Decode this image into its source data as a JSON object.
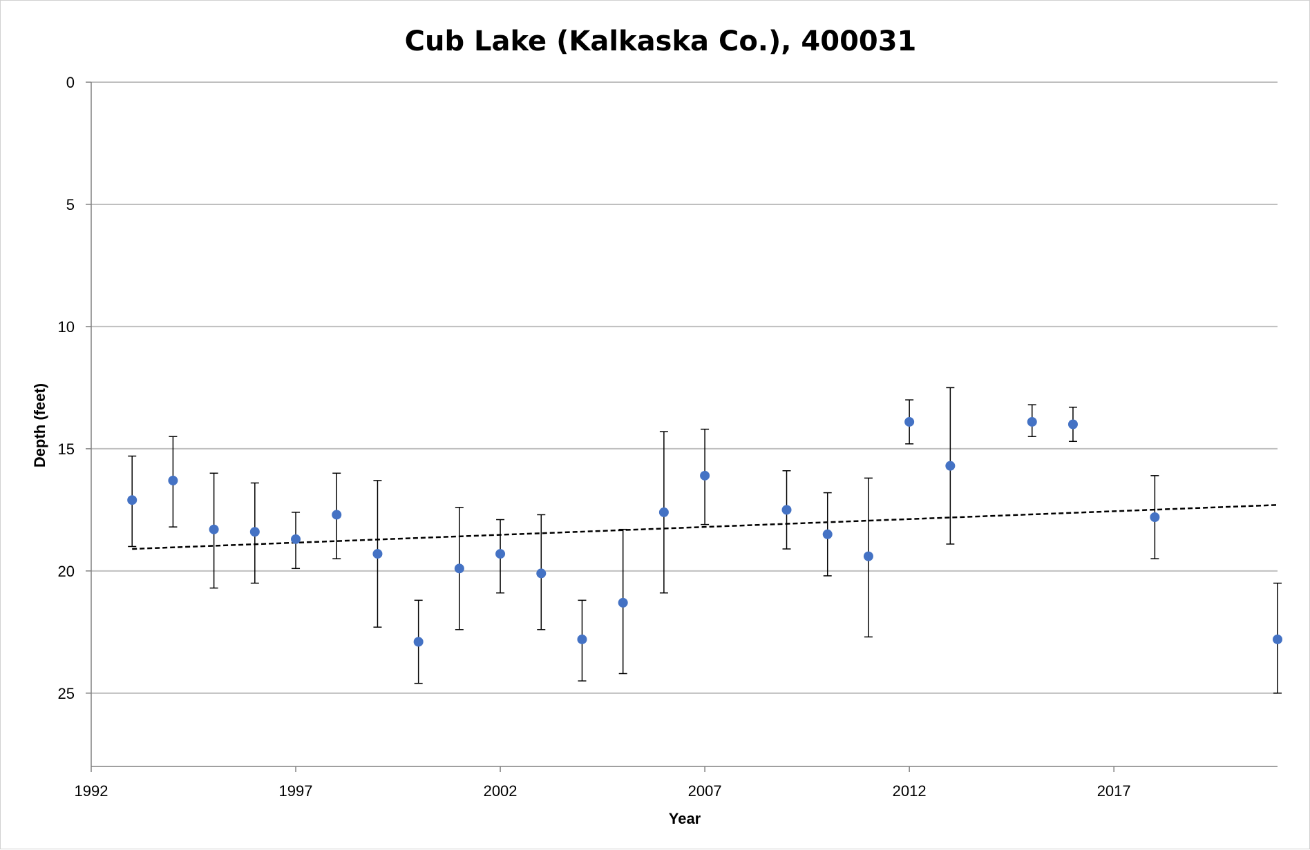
{
  "chart_data": {
    "type": "scatter",
    "title": "Cub Lake (Kalkaska Co.), 400031",
    "xlabel": "Year",
    "ylabel": "Depth (feet)",
    "xlim": [
      1992,
      2021
    ],
    "ylim": [
      0,
      28
    ],
    "y_inverted": true,
    "x_ticks": [
      1992,
      1997,
      2002,
      2007,
      2012,
      2017
    ],
    "y_ticks": [
      0,
      5,
      10,
      15,
      20,
      25
    ],
    "grid": "horizontal",
    "legend": "none",
    "colors": {
      "marker": "#4472C4",
      "error_bar": "#000000",
      "trendline": "#000000",
      "grid": "#bfbfbf"
    },
    "series": [
      {
        "x": [
          1993,
          1994,
          1995,
          1996,
          1997,
          1998,
          1999,
          2000,
          2001,
          2002,
          2003,
          2004,
          2005,
          2006,
          2007,
          2009,
          2010,
          2011,
          2012,
          2013,
          2015,
          2016,
          2018,
          2021
        ],
        "y": [
          17.1,
          16.3,
          18.3,
          18.4,
          18.7,
          17.7,
          19.3,
          22.9,
          19.9,
          19.3,
          20.1,
          22.8,
          21.3,
          17.6,
          16.1,
          17.5,
          18.5,
          19.4,
          13.9,
          15.7,
          13.9,
          14.0,
          17.8,
          22.8
        ],
        "error_low": [
          19.0,
          18.2,
          20.7,
          20.5,
          19.9,
          19.5,
          22.3,
          24.6,
          22.4,
          20.9,
          22.4,
          24.5,
          24.2,
          20.9,
          18.1,
          19.1,
          20.2,
          22.7,
          14.8,
          18.9,
          14.5,
          14.7,
          19.5,
          25.0
        ],
        "error_high": [
          15.3,
          14.5,
          16.0,
          16.4,
          17.6,
          16.0,
          16.3,
          21.2,
          17.4,
          17.9,
          17.7,
          21.2,
          18.3,
          14.3,
          14.2,
          15.9,
          16.8,
          16.2,
          13.0,
          12.5,
          13.2,
          13.3,
          16.1,
          20.5
        ]
      }
    ],
    "trendline": {
      "style": "dashed",
      "x": [
        1993,
        2021
      ],
      "y": [
        19.1,
        17.3
      ]
    }
  }
}
